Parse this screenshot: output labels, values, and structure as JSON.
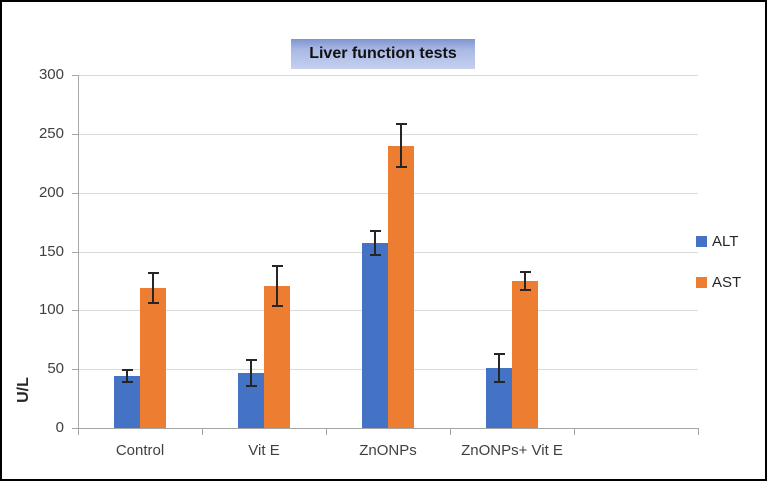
{
  "title": "Liver function tests",
  "colors": {
    "alt": "#4472C4",
    "ast": "#ED7D31",
    "gridline": "#D9D9D9",
    "axis": "#A6A6A6",
    "error_bar": "#262626",
    "title_box_gradient_top": "#7E95CF",
    "title_box_gradient_bottom": "#C6D0EE",
    "axis_text": "#404040",
    "outer_border": "#000000"
  },
  "y_axis": {
    "label": "U/L",
    "ticks": [
      0,
      50,
      100,
      150,
      200,
      250,
      300
    ]
  },
  "legend": {
    "position": "right",
    "items": [
      {
        "label": "ALT",
        "color": "#4472C4"
      },
      {
        "label": "AST",
        "color": "#ED7D31"
      }
    ]
  },
  "chart_data": {
    "type": "bar",
    "title": "Liver function tests",
    "categories": [
      "Control",
      "Vit E",
      "ZnONPs",
      "ZnONPs+ Vit E"
    ],
    "series": [
      {
        "name": "ALT",
        "color": "#4472C4",
        "values": [
          44,
          47,
          157,
          51
        ],
        "errors": [
          5,
          11,
          10,
          12
        ]
      },
      {
        "name": "AST",
        "color": "#ED7D31",
        "values": [
          119,
          121,
          240,
          125
        ],
        "errors": [
          13,
          17,
          18,
          8
        ]
      }
    ],
    "xlabel": "",
    "ylabel": "U/L",
    "ylim": [
      0,
      300
    ],
    "ytick_step": 50,
    "grid": true,
    "legend_position": "right",
    "error_bars": true,
    "empty_trailing_category_slots": 1
  }
}
